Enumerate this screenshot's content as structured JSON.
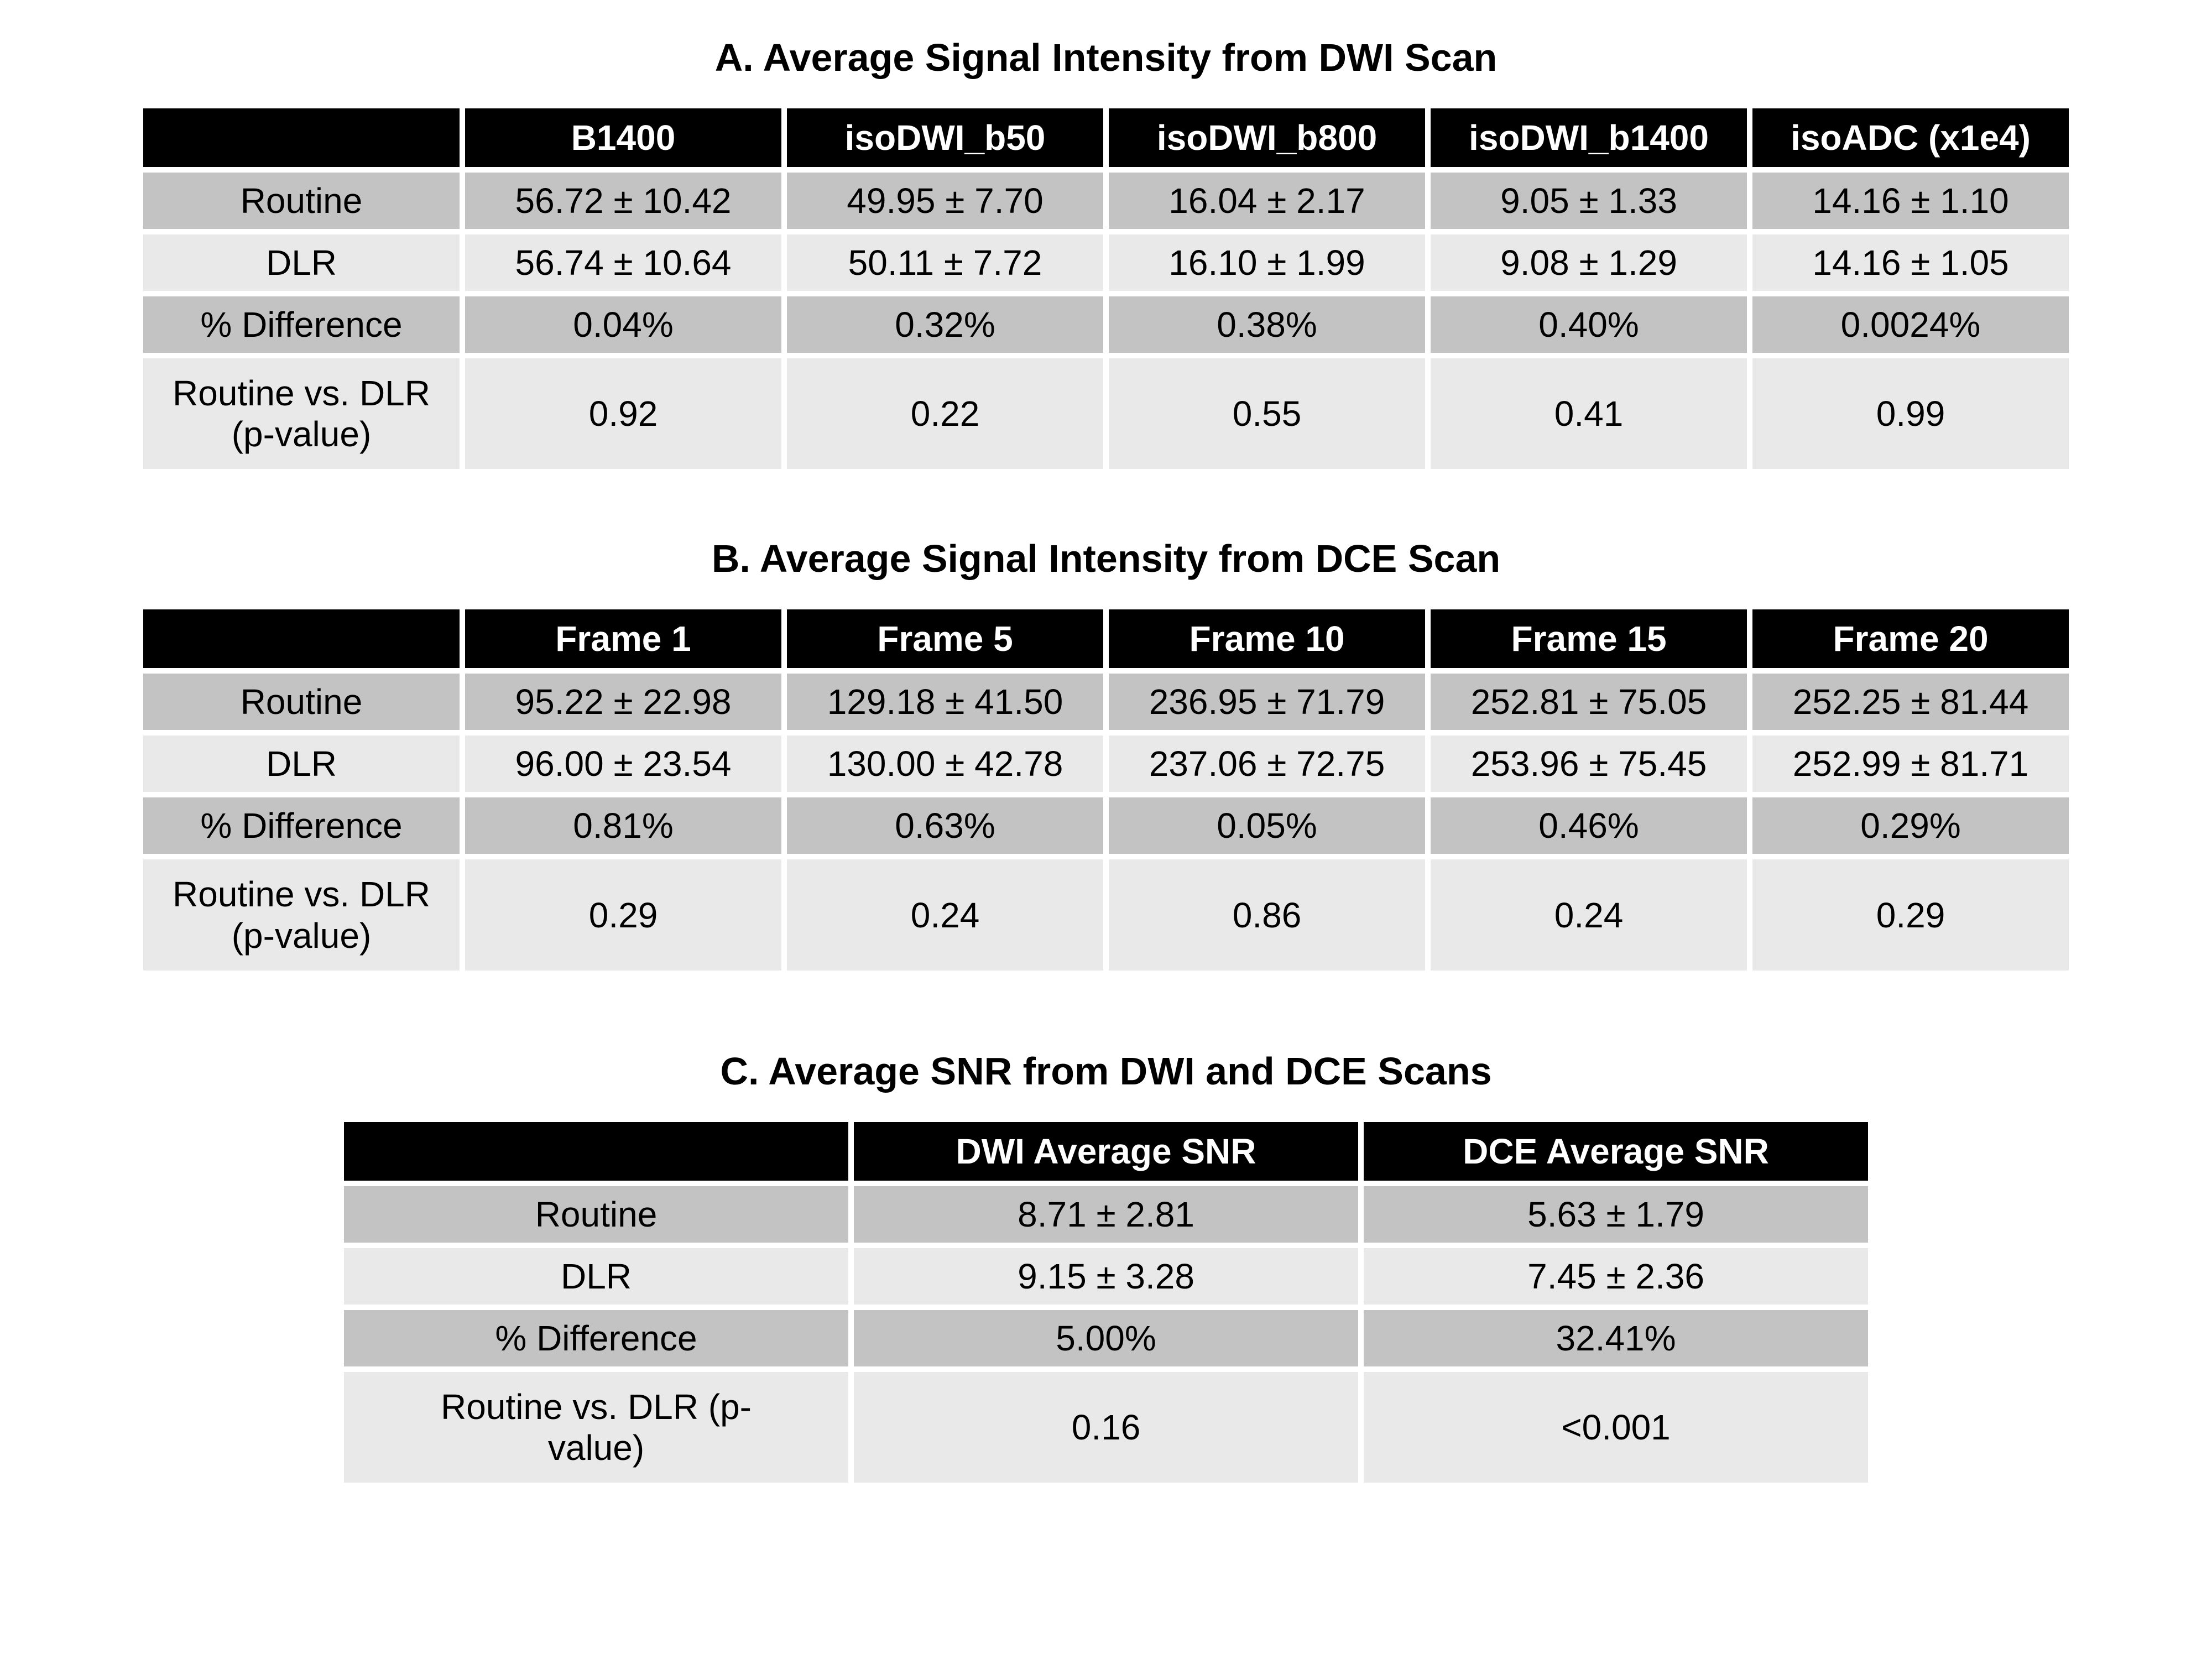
{
  "figure": {
    "background": "#ffffff",
    "colors": {
      "header_bg": "#000000",
      "header_text": "#ffffff",
      "row_shade_dark": "#c3c3c3",
      "row_shade_light": "#e9e9e9",
      "body_text": "#000000",
      "separator": "#ffffff"
    },
    "tables": [
      {
        "id": "dwi-signal-intensity",
        "title": "A. Average Signal Intensity from DWI Scan",
        "layout": "wide",
        "columns": [
          "",
          "B1400",
          "isoDWI_b50",
          "isoDWI_b800",
          "isoDWI_b1400",
          "isoADC (x1e4)"
        ],
        "rows": [
          {
            "label": "Routine",
            "values": [
              "56.72 ± 10.42",
              "49.95 ± 7.70",
              "16.04 ± 2.17",
              "9.05 ± 1.33",
              "14.16 ± 1.10"
            ]
          },
          {
            "label": "DLR",
            "values": [
              "56.74 ± 10.64",
              "50.11 ± 7.72",
              "16.10 ± 1.99",
              "9.08 ± 1.29",
              "14.16 ± 1.05"
            ]
          },
          {
            "label": "% Difference",
            "values": [
              "0.04%",
              "0.32%",
              "0.38%",
              "0.40%",
              "0.0024%"
            ]
          },
          {
            "label": "Routine vs. DLR (p-value)",
            "values": [
              "0.92",
              "0.22",
              "0.55",
              "0.41",
              "0.99"
            ]
          }
        ]
      },
      {
        "id": "dce-signal-intensity",
        "title": "B. Average Signal Intensity from DCE Scan",
        "layout": "wide",
        "columns": [
          "",
          "Frame 1",
          "Frame 5",
          "Frame 10",
          "Frame 15",
          "Frame 20"
        ],
        "rows": [
          {
            "label": "Routine",
            "values": [
              "95.22 ± 22.98",
              "129.18 ± 41.50",
              "236.95 ± 71.79",
              "252.81 ± 75.05",
              "252.25 ± 81.44"
            ]
          },
          {
            "label": "DLR",
            "values": [
              "96.00 ± 23.54",
              "130.00 ± 42.78",
              "237.06 ± 72.75",
              "253.96 ± 75.45",
              "252.99 ± 81.71"
            ]
          },
          {
            "label": "% Difference",
            "values": [
              "0.81%",
              "0.63%",
              "0.05%",
              "0.46%",
              "0.29%"
            ]
          },
          {
            "label": "Routine vs. DLR (p-value)",
            "values": [
              "0.29",
              "0.24",
              "0.86",
              "0.24",
              "0.29"
            ]
          }
        ]
      },
      {
        "id": "snr",
        "title": "C. Average SNR from DWI and DCE Scans",
        "layout": "narrow",
        "columns": [
          "",
          "DWI Average SNR",
          "DCE Average SNR"
        ],
        "rows": [
          {
            "label": "Routine",
            "values": [
              "8.71 ± 2.81",
              "5.63 ± 1.79"
            ]
          },
          {
            "label": "DLR",
            "values": [
              "9.15 ± 3.28",
              "7.45 ± 2.36"
            ]
          },
          {
            "label": "% Difference",
            "values": [
              "5.00%",
              "32.41%"
            ]
          },
          {
            "label": "Routine vs. DLR (p-value)",
            "values": [
              "0.16",
              "<0.001"
            ]
          }
        ]
      }
    ]
  }
}
